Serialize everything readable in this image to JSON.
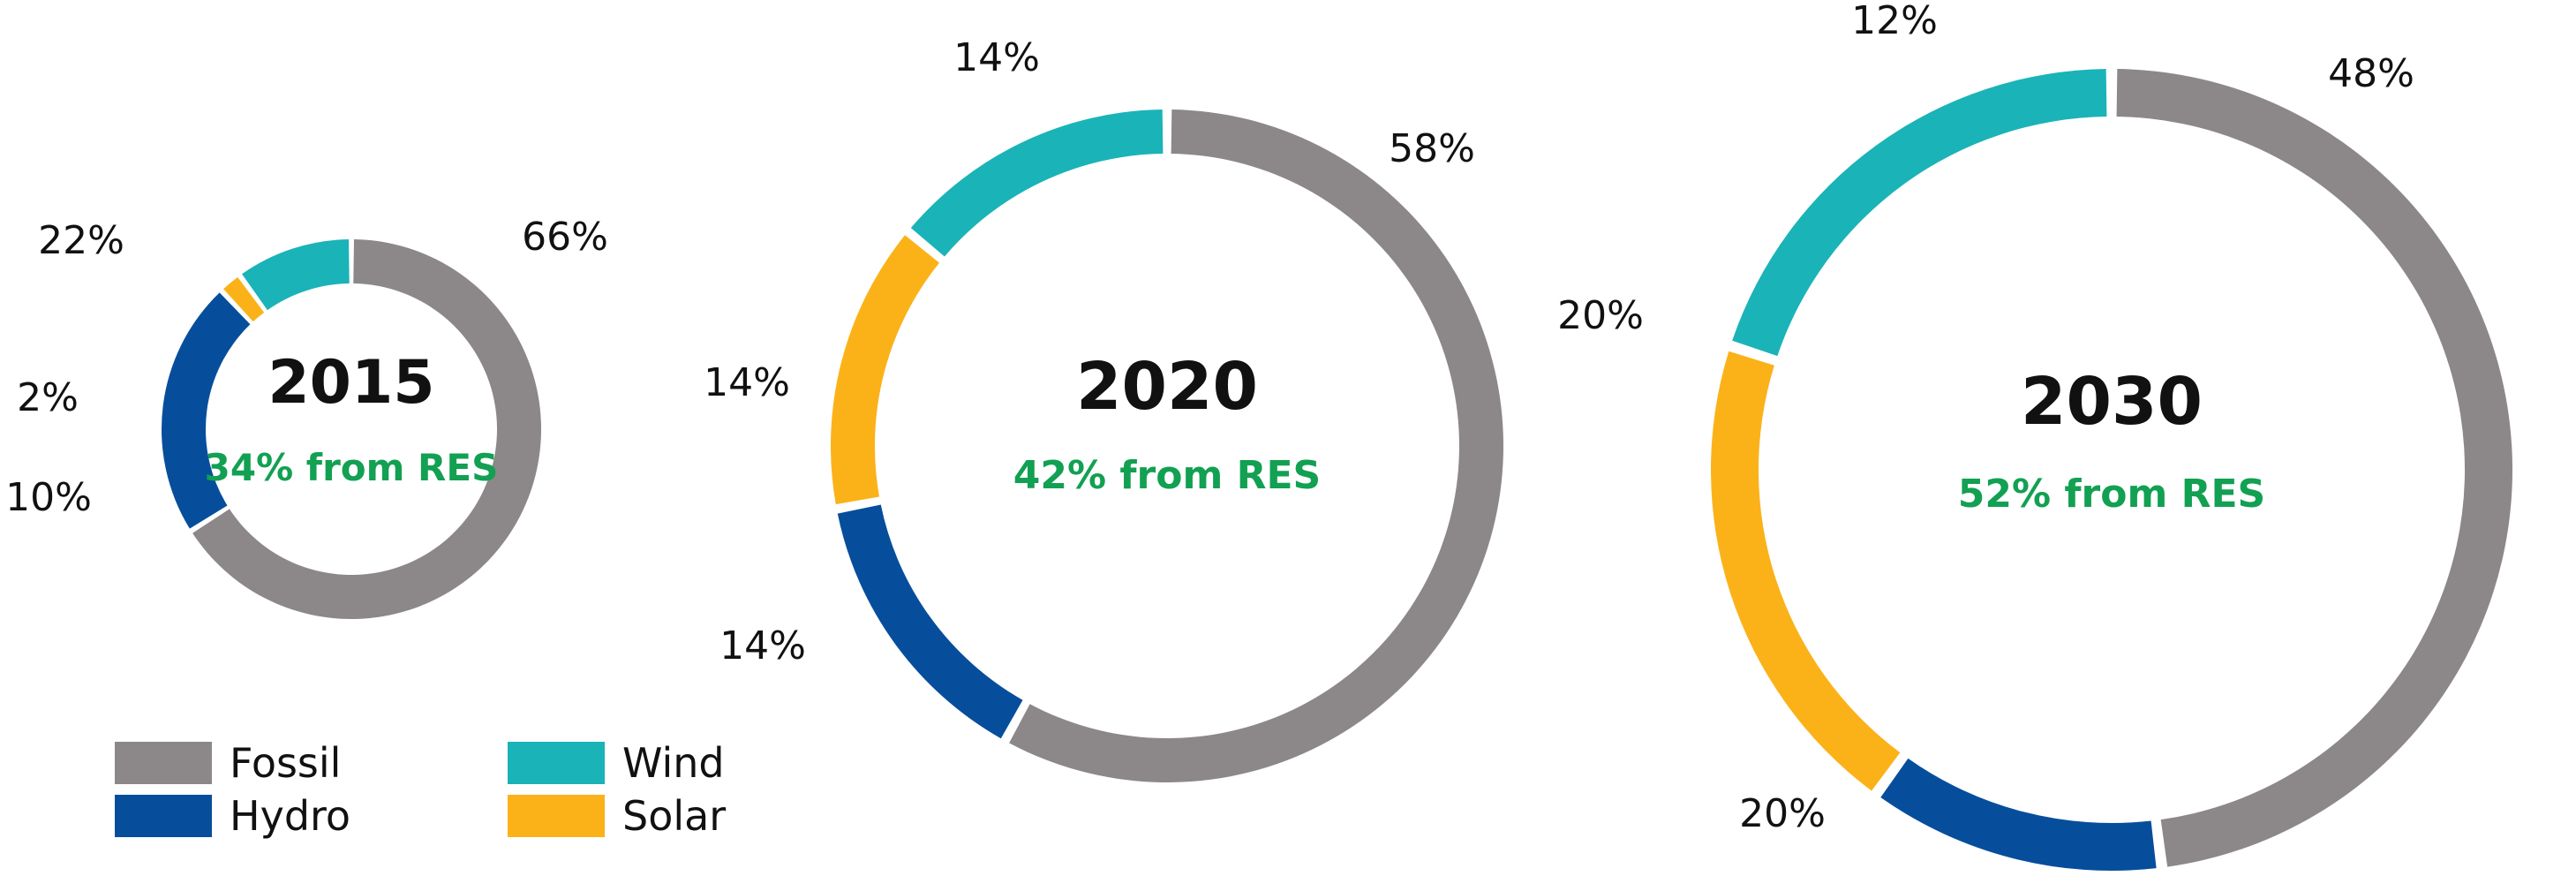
{
  "chart_data": [
    {
      "type": "pie",
      "variant": "donut",
      "title": "2015",
      "subtitle": "34% from RES",
      "categories": [
        "Fossil",
        "Hydro",
        "Solar",
        "Wind"
      ],
      "values": [
        66,
        22,
        2,
        10
      ],
      "labels": [
        "66%",
        "22%",
        "2%",
        "10%"
      ]
    },
    {
      "type": "pie",
      "variant": "donut",
      "title": "2020",
      "subtitle": "42% from RES",
      "categories": [
        "Fossil",
        "Hydro",
        "Solar",
        "Wind"
      ],
      "values": [
        58,
        14,
        14,
        14
      ],
      "labels": [
        "58%",
        "14%",
        "14%",
        "14%"
      ]
    },
    {
      "type": "pie",
      "variant": "donut",
      "title": "2030",
      "subtitle": "52% from RES",
      "categories": [
        "Fossil",
        "Hydro",
        "Solar",
        "Wind"
      ],
      "values": [
        48,
        12,
        20,
        20
      ],
      "labels": [
        "48%",
        "12%",
        "20%",
        "20%"
      ]
    }
  ],
  "legend": {
    "placement": "bottom-left",
    "entries": [
      {
        "label": "Fossil",
        "color": "#8c8889"
      },
      {
        "label": "Wind",
        "color": "#1ab3b8"
      },
      {
        "label": "Hydro",
        "color": "#064e9c"
      },
      {
        "label": "Solar",
        "color": "#fbb219"
      }
    ]
  },
  "colors": {
    "Fossil": "#8c8889",
    "Hydro": "#064e9c",
    "Solar": "#fbb219",
    "Wind": "#1ab3b8",
    "res_text": "#12a052"
  }
}
